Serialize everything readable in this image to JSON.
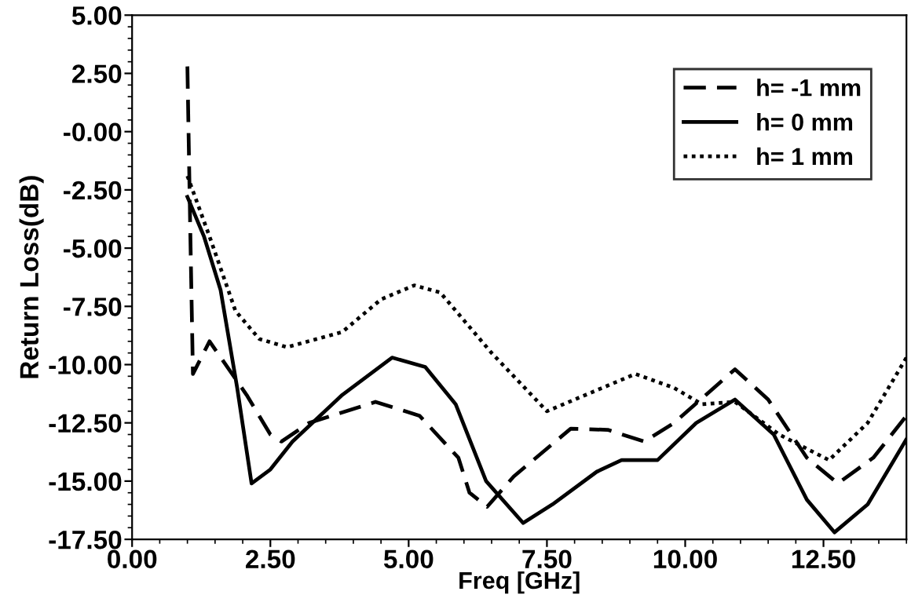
{
  "chart_data": {
    "type": "line",
    "xlabel": "Freq [GHz]",
    "ylabel": "Return Loss(dB)",
    "xlim": [
      0,
      14
    ],
    "ylim": [
      -17.5,
      5
    ],
    "xticks": [
      {
        "value": 0,
        "label": "0.00"
      },
      {
        "value": 2.5,
        "label": "2.50"
      },
      {
        "value": 5,
        "label": "5.00"
      },
      {
        "value": 7.5,
        "label": "7.50"
      },
      {
        "value": 10,
        "label": "10.00"
      },
      {
        "value": 12.5,
        "label": "12.50"
      }
    ],
    "yticks": [
      {
        "value": 5,
        "label": "5.00"
      },
      {
        "value": 2.5,
        "label": "2.50"
      },
      {
        "value": 0,
        "label": "-0.00"
      },
      {
        "value": -2.5,
        "label": "-2.50"
      },
      {
        "value": -5,
        "label": "-5.00"
      },
      {
        "value": -7.5,
        "label": "-7.50"
      },
      {
        "value": -10,
        "label": "-10.00"
      },
      {
        "value": -12.5,
        "label": "-12.50"
      },
      {
        "value": -15,
        "label": "-15.00"
      },
      {
        "value": -17.5,
        "label": "-17.50"
      }
    ],
    "grid": false,
    "legend": "top right",
    "marker": "none",
    "series": [
      {
        "name": "h= -1 mm",
        "color": "#000000",
        "line_style": "dashed",
        "x": [
          1.0,
          1.05,
          1.1,
          1.4,
          2.07,
          2.5,
          2.7,
          3.2,
          4.4,
          5.2,
          5.9,
          6.1,
          6.42,
          6.9,
          7.93,
          8.6,
          9.26,
          9.8,
          10.9,
          11.5,
          12.2,
          12.76,
          13.4,
          14.0
        ],
        "values": [
          2.8,
          -4.0,
          -10.4,
          -9.0,
          -11.3,
          -13.0,
          -13.3,
          -12.5,
          -11.6,
          -12.2,
          -14.0,
          -15.5,
          -16.1,
          -14.8,
          -12.75,
          -12.8,
          -13.3,
          -12.5,
          -10.2,
          -11.5,
          -14.0,
          -15.1,
          -14.0,
          -12.2
        ]
      },
      {
        "name": "h= 0 mm",
        "color": "#000000",
        "line_style": "solid",
        "x": [
          1.0,
          1.3,
          1.6,
          1.9,
          2.16,
          2.5,
          2.9,
          3.8,
          4.7,
          5.3,
          5.85,
          6.4,
          7.07,
          7.6,
          8.4,
          8.85,
          9.5,
          10.2,
          10.9,
          11.6,
          12.2,
          12.7,
          13.3,
          14.0
        ],
        "values": [
          -2.8,
          -4.5,
          -6.8,
          -11.0,
          -15.1,
          -14.5,
          -13.3,
          -11.3,
          -9.7,
          -10.1,
          -11.7,
          -15.0,
          -16.8,
          -16.0,
          -14.6,
          -14.1,
          -14.1,
          -12.5,
          -11.5,
          -13.0,
          -15.8,
          -17.2,
          -16.0,
          -13.2
        ]
      },
      {
        "name": "h= 1 mm",
        "color": "#000000",
        "line_style": "dotted",
        "x": [
          1.0,
          1.4,
          1.87,
          2.3,
          2.8,
          3.8,
          4.5,
          5.1,
          5.57,
          6.5,
          7.5,
          8.3,
          9.1,
          9.8,
          10.3,
          10.9,
          11.7,
          12.6,
          13.3,
          14.0
        ],
        "values": [
          -1.9,
          -4.5,
          -7.7,
          -8.9,
          -9.25,
          -8.6,
          -7.2,
          -6.6,
          -6.9,
          -9.5,
          -12.0,
          -11.2,
          -10.4,
          -11.0,
          -11.7,
          -11.6,
          -13.0,
          -14.1,
          -12.5,
          -9.7
        ]
      }
    ]
  }
}
